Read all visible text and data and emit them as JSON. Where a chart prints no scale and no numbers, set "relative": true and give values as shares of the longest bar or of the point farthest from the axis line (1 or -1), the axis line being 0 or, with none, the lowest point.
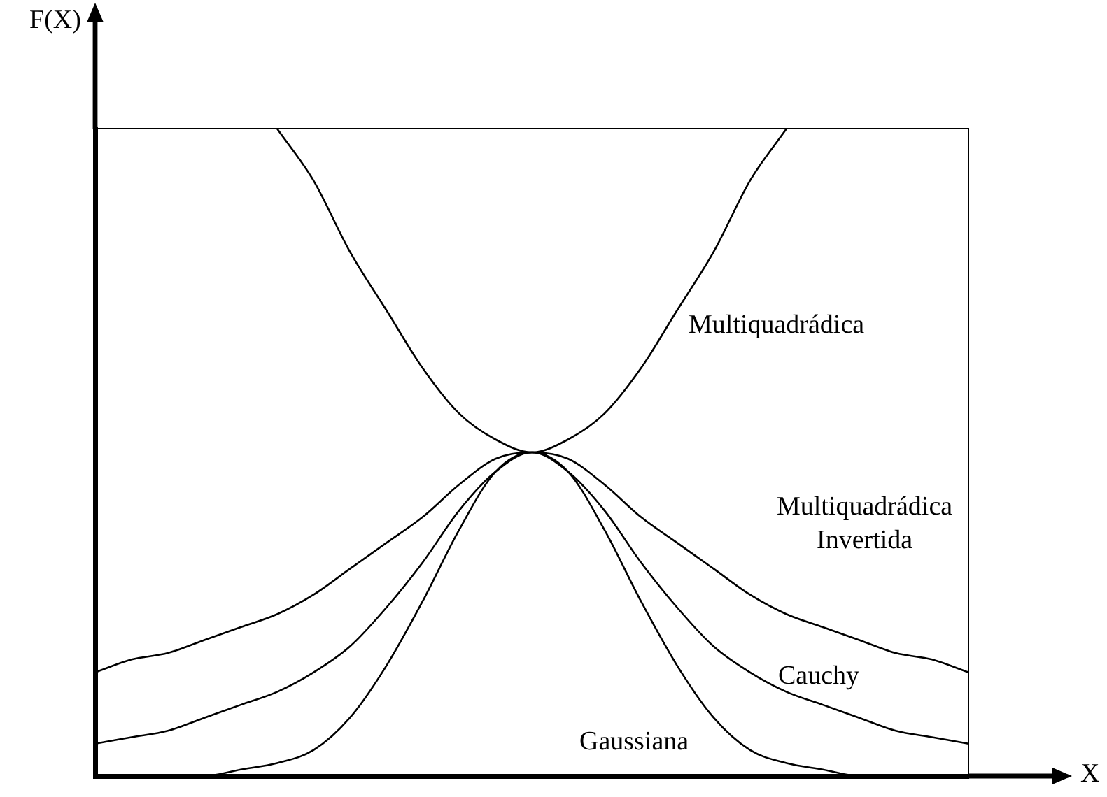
{
  "chart_data": {
    "type": "line",
    "relative": true,
    "xlabel": "X",
    "ylabel": "F(X)",
    "legend": false,
    "grid": false,
    "marker": "none",
    "line_style": "solid",
    "categories": [
      null,
      null,
      null,
      null,
      null,
      null,
      null,
      null,
      null,
      null,
      null,
      null,
      null,
      null,
      null,
      null,
      null,
      null,
      null,
      null,
      null,
      null,
      null,
      null,
      null
    ],
    "series": [
      {
        "name": "Multiquadrádica",
        "color": "#000000",
        "values": [
          null,
          null,
          null,
          null,
          null,
          1,
          0.92,
          0.81,
          0.72,
          0.63,
          0.56,
          0.52,
          0.5,
          0.52,
          0.56,
          0.63,
          0.72,
          0.81,
          0.92,
          1,
          null,
          null,
          null,
          null,
          null
        ]
      },
      {
        "name": "Multiquadrádica Invertida",
        "color": "#000000",
        "values": [
          0.16,
          0.18,
          0.19,
          0.21,
          0.23,
          0.25,
          0.28,
          0.32,
          0.36,
          0.4,
          0.45,
          0.49,
          0.5,
          0.49,
          0.45,
          0.4,
          0.36,
          0.32,
          0.28,
          0.25,
          0.23,
          0.21,
          0.19,
          0.18,
          0.16
        ]
      },
      {
        "name": "Cauchy",
        "color": "#000000",
        "values": [
          0.05,
          0.06,
          0.07,
          0.09,
          0.11,
          0.13,
          0.16,
          0.2,
          0.26,
          0.33,
          0.41,
          0.47,
          0.5,
          0.47,
          0.41,
          0.33,
          0.26,
          0.2,
          0.16,
          0.13,
          0.11,
          0.09,
          0.07,
          0.06,
          0.05
        ]
      },
      {
        "name": "Gaussiana",
        "color": "#000000",
        "values": [
          0,
          0,
          0,
          0,
          0.01,
          0.02,
          0.04,
          0.09,
          0.17,
          0.27,
          0.38,
          0.47,
          0.5,
          0.47,
          0.38,
          0.27,
          0.17,
          0.09,
          0.04,
          0.02,
          0.01,
          0,
          0,
          0,
          0
        ]
      }
    ]
  }
}
